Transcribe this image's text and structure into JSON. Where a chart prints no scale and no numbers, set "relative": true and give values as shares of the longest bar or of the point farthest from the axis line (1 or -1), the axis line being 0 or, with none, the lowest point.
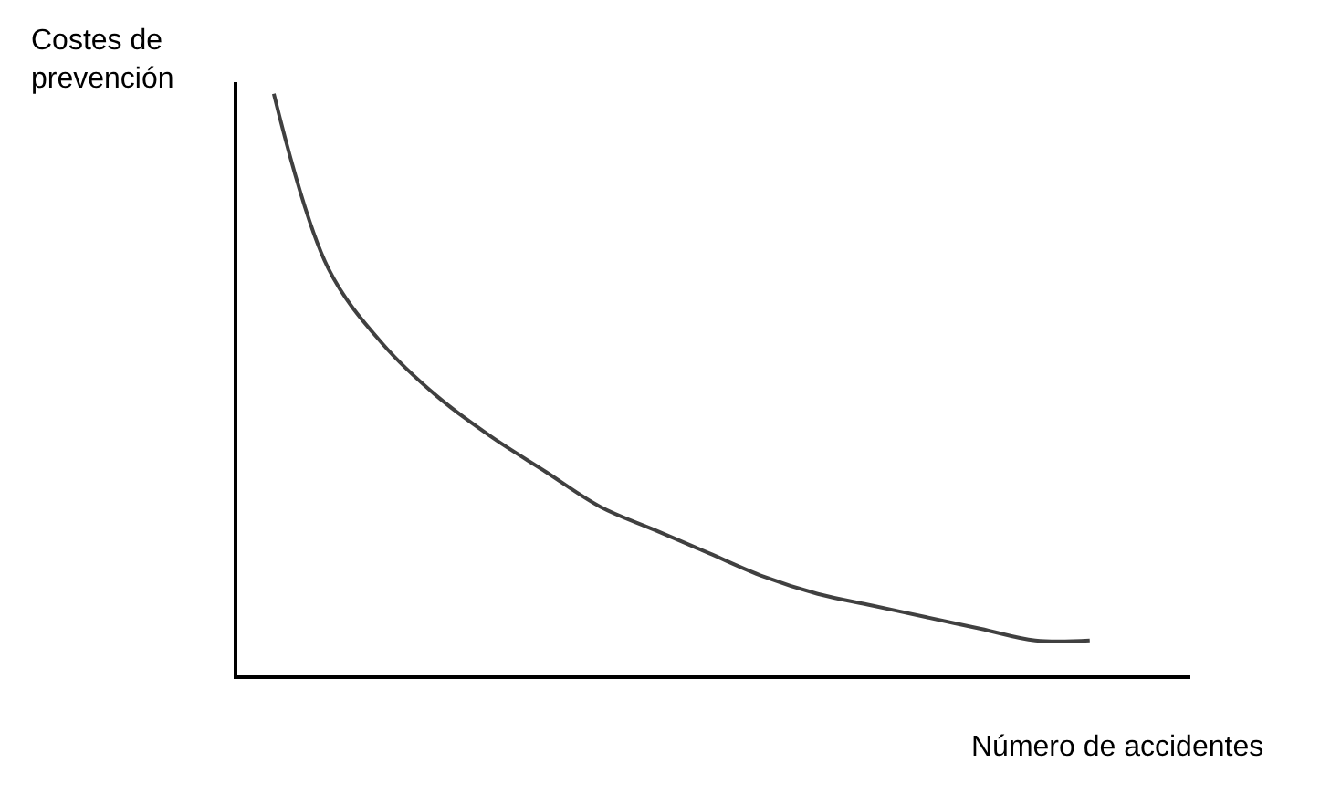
{
  "chart_data": {
    "type": "line",
    "relative": true,
    "xlabel": "Número de accidentes",
    "ylabel": "Costes de\nprevención",
    "categories": [
      null,
      null,
      null,
      null,
      null,
      null,
      null,
      null,
      null,
      null,
      null,
      null,
      null,
      null,
      null,
      null
    ],
    "series": [
      {
        "color": "#404040",
        "values": [
          1.0,
          0.7,
          0.57,
          0.48,
          0.41,
          0.35,
          0.29,
          0.25,
          0.21,
          0.17,
          0.14,
          0.12,
          0.1,
          0.08,
          0.06,
          0.06
        ]
      }
    ],
    "marker": "none",
    "line_style": "solid"
  }
}
